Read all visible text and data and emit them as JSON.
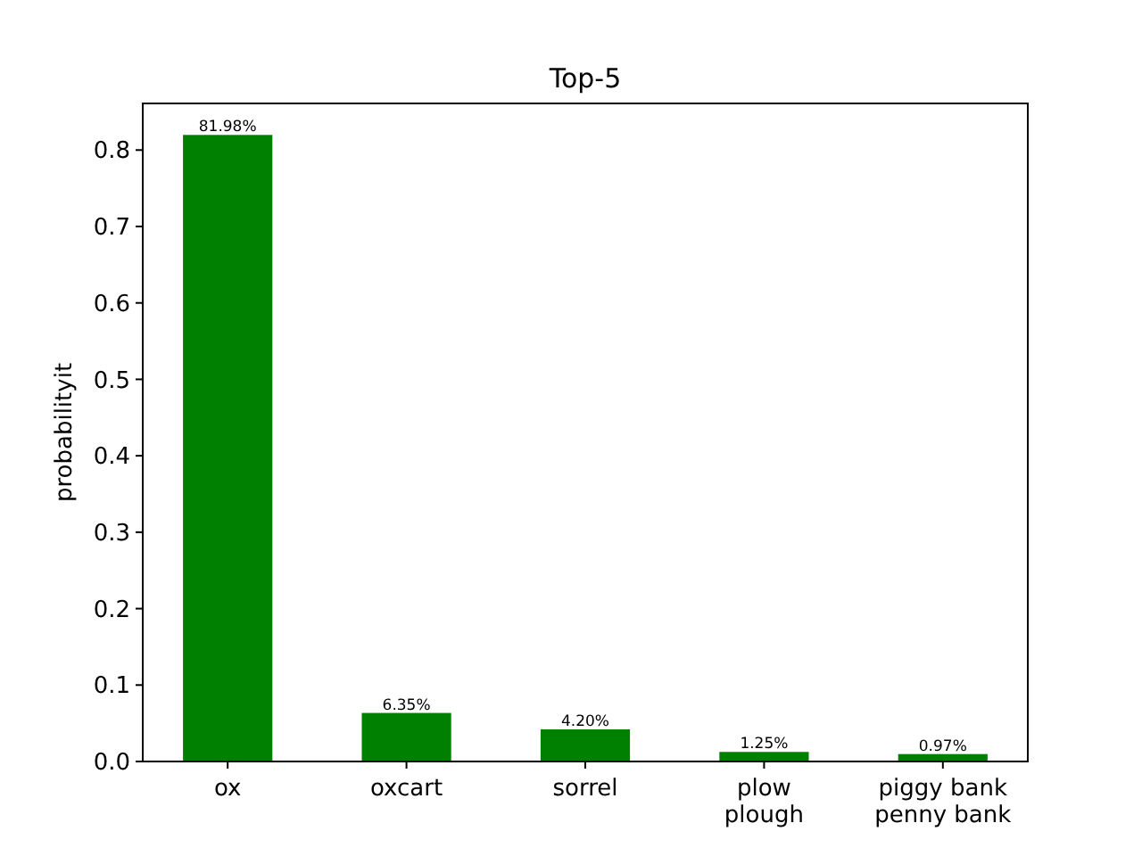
{
  "chart_data": {
    "type": "bar",
    "title": "Top-5",
    "ylabel": "probabilityit",
    "categories": [
      "ox",
      "oxcart",
      "sorrel",
      "plow\nplough",
      "piggy bank\npenny bank"
    ],
    "values": [
      0.8198,
      0.0635,
      0.042,
      0.0125,
      0.0097
    ],
    "value_labels": [
      "81.98%",
      "6.35%",
      "4.20%",
      "1.25%",
      "0.97%"
    ],
    "color": "#008000",
    "ylim": [
      0,
      0.861
    ],
    "yticks": [
      {
        "value": 0,
        "label": "0.0"
      },
      0.1,
      0.2,
      0.3,
      0.4,
      0.5,
      0.6,
      0.7,
      0.8
    ],
    "grid": false
  }
}
